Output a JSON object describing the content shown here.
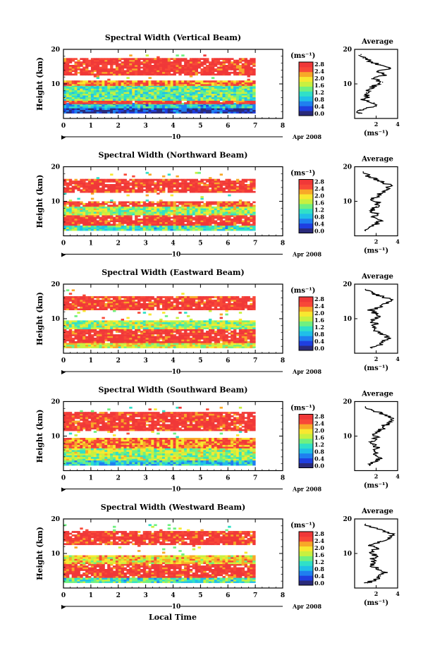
{
  "figure": {
    "xlabel": "Local Time",
    "date_label": "Apr 2008",
    "day_label": "10",
    "colorbar_unit": "(ms⁻¹)",
    "colorbar_ticks": [
      "0.0",
      "0.4",
      "0.8",
      "1.2",
      "1.6",
      "2.0",
      "2.4",
      "2.8"
    ],
    "colorbar_colors": [
      "#2a2a7a",
      "#1f3fe0",
      "#1f7ff0",
      "#20bfe8",
      "#30e0c8",
      "#70f080",
      "#c8f040",
      "#f8e830",
      "#f8a828",
      "#f84838",
      "#f03838"
    ],
    "average_title": "Average",
    "average_xlabel": "(ms⁻¹)",
    "ylabel": "Height (km)"
  },
  "chart_data": [
    {
      "type": "heatmap",
      "title": "Spectral Width (Vertical Beam)",
      "xlabel": "Local Time",
      "ylabel": "Height (km)",
      "xlim": [
        0,
        8
      ],
      "ylim": [
        0,
        20
      ],
      "x_ticks": [
        "0",
        "1",
        "2",
        "3",
        "4",
        "5",
        "6",
        "7",
        "8"
      ],
      "y_ticks": [
        "20",
        "10"
      ],
      "data_x_range": [
        0,
        7
      ],
      "data_height_range": [
        1.5,
        18.5
      ],
      "colorbar": {
        "label": "(ms⁻¹)",
        "range": [
          0.0,
          2.8
        ]
      },
      "layers": [
        {
          "from": 1.5,
          "to": 3.0,
          "level": 0.2
        },
        {
          "from": 3.0,
          "to": 4.2,
          "level": 0.9
        },
        {
          "from": 4.2,
          "to": 5.2,
          "level": 2.8
        },
        {
          "from": 5.2,
          "to": 9.5,
          "level": 1.3
        },
        {
          "from": 9.5,
          "to": 11.0,
          "level": 2.4
        },
        {
          "from": 11.0,
          "to": 12.5,
          "level": 0
        },
        {
          "from": 12.5,
          "to": 17.5,
          "level": 2.8
        },
        {
          "from": 17.5,
          "to": 18.5,
          "level": 0
        }
      ],
      "average_profile": {
        "title": "Average",
        "xlabel": "(ms⁻¹)",
        "xlim": [
          0,
          4
        ],
        "x_ticks": [
          "2",
          "4"
        ],
        "ylim": [
          0,
          20
        ],
        "y_ticks": [
          "20",
          "10"
        ],
        "height": [
          1.5,
          2.5,
          3.5,
          4.5,
          5.5,
          6.5,
          7.5,
          8.5,
          9.5,
          10.5,
          11.5,
          12.5,
          13.5,
          14.5,
          15.5,
          16.5,
          17.5,
          18.5
        ],
        "width": [
          0.4,
          0.5,
          2.0,
          1.8,
          0.9,
          1.2,
          1.1,
          1.4,
          1.8,
          2.6,
          1.6,
          2.8,
          2.2,
          3.2,
          2.4,
          1.5,
          0.8,
          0.6
        ]
      }
    },
    {
      "type": "heatmap",
      "title": "Spectral Width (Northward Beam)",
      "xlabel": "Local Time",
      "ylabel": "Height (km)",
      "xlim": [
        0,
        8
      ],
      "ylim": [
        0,
        20
      ],
      "x_ticks": [
        "0",
        "1",
        "2",
        "3",
        "4",
        "5",
        "6",
        "7",
        "8"
      ],
      "y_ticks": [
        "20",
        "10"
      ],
      "data_x_range": [
        0,
        7
      ],
      "data_height_range": [
        1.5,
        18.5
      ],
      "colorbar": {
        "label": "(ms⁻¹)",
        "range": [
          0.0,
          2.8
        ]
      },
      "layers": [
        {
          "from": 1.5,
          "to": 3.0,
          "level": 1.2
        },
        {
          "from": 3.0,
          "to": 6.0,
          "level": 2.8
        },
        {
          "from": 6.0,
          "to": 8.5,
          "level": 1.6
        },
        {
          "from": 8.5,
          "to": 10.0,
          "level": 2.6
        },
        {
          "from": 10.0,
          "to": 12.5,
          "level": 0
        },
        {
          "from": 12.5,
          "to": 16.5,
          "level": 2.8
        },
        {
          "from": 16.5,
          "to": 18.5,
          "level": 0
        }
      ],
      "average_profile": {
        "title": "Average",
        "xlabel": "(ms⁻¹)",
        "xlim": [
          0,
          4
        ],
        "x_ticks": [
          "2",
          "4"
        ],
        "ylim": [
          0,
          20
        ],
        "y_ticks": [
          "20",
          "10"
        ],
        "height": [
          1.5,
          2.5,
          3.5,
          4.5,
          5.5,
          6.5,
          7.5,
          8.5,
          9.5,
          10.5,
          11.5,
          12.5,
          13.5,
          14.5,
          15.5,
          16.5,
          17.5,
          18.5
        ],
        "width": [
          1.0,
          1.4,
          2.0,
          2.4,
          1.8,
          1.9,
          1.6,
          2.0,
          2.3,
          1.5,
          2.1,
          2.6,
          3.0,
          3.4,
          2.6,
          1.8,
          1.2,
          0.8
        ]
      }
    },
    {
      "type": "heatmap",
      "title": "Spectral Width (Eastward Beam)",
      "xlabel": "Local Time",
      "ylabel": "Height (km)",
      "xlim": [
        0,
        8
      ],
      "ylim": [
        0,
        20
      ],
      "x_ticks": [
        "0",
        "1",
        "2",
        "3",
        "4",
        "5",
        "6",
        "7",
        "8"
      ],
      "y_ticks": [
        "20",
        "10"
      ],
      "data_x_range": [
        0,
        7
      ],
      "data_height_range": [
        1.5,
        18.5
      ],
      "colorbar": {
        "label": "(ms⁻¹)",
        "range": [
          0.0,
          2.8
        ]
      },
      "layers": [
        {
          "from": 1.5,
          "to": 3.0,
          "level": 1.8
        },
        {
          "from": 3.0,
          "to": 7.0,
          "level": 2.8
        },
        {
          "from": 7.0,
          "to": 9.5,
          "level": 1.6
        },
        {
          "from": 9.5,
          "to": 12.5,
          "level": 0
        },
        {
          "from": 12.5,
          "to": 16.5,
          "level": 2.8
        },
        {
          "from": 16.5,
          "to": 18.5,
          "level": 0
        }
      ],
      "average_profile": {
        "title": "Average",
        "xlabel": "(ms⁻¹)",
        "xlim": [
          0,
          4
        ],
        "x_ticks": [
          "2",
          "4"
        ],
        "ylim": [
          0,
          20
        ],
        "y_ticks": [
          "20",
          "10"
        ],
        "height": [
          1.5,
          2.5,
          3.5,
          4.5,
          5.5,
          6.5,
          7.5,
          8.5,
          9.5,
          10.5,
          11.5,
          12.5,
          13.5,
          14.5,
          15.5,
          16.5,
          17.5,
          18.5
        ],
        "width": [
          1.6,
          2.6,
          2.8,
          3.2,
          2.6,
          1.8,
          1.7,
          1.9,
          1.6,
          2.3,
          2.0,
          1.4,
          2.6,
          3.0,
          3.4,
          2.4,
          1.6,
          1.0
        ]
      }
    },
    {
      "type": "heatmap",
      "title": "Spectral Width (Southward Beam)",
      "xlabel": "Local Time",
      "ylabel": "Height (km)",
      "xlim": [
        0,
        8
      ],
      "ylim": [
        0,
        20
      ],
      "x_ticks": [
        "0",
        "1",
        "2",
        "3",
        "4",
        "5",
        "6",
        "7",
        "8"
      ],
      "y_ticks": [
        "20",
        "10"
      ],
      "data_x_range": [
        0,
        7
      ],
      "data_height_range": [
        1.5,
        18.5
      ],
      "colorbar": {
        "label": "(ms⁻¹)",
        "range": [
          0.0,
          2.8
        ]
      },
      "layers": [
        {
          "from": 1.5,
          "to": 3.0,
          "level": 1.0
        },
        {
          "from": 3.0,
          "to": 6.5,
          "level": 1.6
        },
        {
          "from": 6.5,
          "to": 9.5,
          "level": 2.4
        },
        {
          "from": 9.5,
          "to": 11.5,
          "level": 0
        },
        {
          "from": 11.5,
          "to": 17.0,
          "level": 2.8
        },
        {
          "from": 17.0,
          "to": 18.5,
          "level": 0
        }
      ],
      "average_profile": {
        "title": "Average",
        "xlabel": "(ms⁻¹)",
        "xlim": [
          0,
          4
        ],
        "x_ticks": [
          "2",
          "4"
        ],
        "ylim": [
          0,
          20
        ],
        "y_ticks": [
          "20",
          "10"
        ],
        "height": [
          1.5,
          2.5,
          3.5,
          4.5,
          5.5,
          6.5,
          7.5,
          8.5,
          9.5,
          10.5,
          11.5,
          12.5,
          13.5,
          14.5,
          15.5,
          16.5,
          17.5,
          18.5
        ],
        "width": [
          1.4,
          1.8,
          2.2,
          2.0,
          1.9,
          2.1,
          1.7,
          1.6,
          2.0,
          1.8,
          2.4,
          2.6,
          3.0,
          3.6,
          3.2,
          2.6,
          1.6,
          1.0
        ]
      }
    },
    {
      "type": "heatmap",
      "title": "Spectral Width (Westward Beam)",
      "xlabel": "Local Time",
      "ylabel": "Height (km)",
      "xlim": [
        0,
        8
      ],
      "ylim": [
        0,
        20
      ],
      "x_ticks": [
        "0",
        "1",
        "2",
        "3",
        "4",
        "5",
        "6",
        "7",
        "8"
      ],
      "y_ticks": [
        "20",
        "10"
      ],
      "data_x_range": [
        0,
        7
      ],
      "data_height_range": [
        1.5,
        18.5
      ],
      "colorbar": {
        "label": "(ms⁻¹)",
        "range": [
          0.0,
          2.8
        ]
      },
      "layers": [
        {
          "from": 1.5,
          "to": 3.0,
          "level": 1.2
        },
        {
          "from": 3.0,
          "to": 7.0,
          "level": 2.8
        },
        {
          "from": 7.0,
          "to": 9.5,
          "level": 2.0
        },
        {
          "from": 9.5,
          "to": 12.5,
          "level": 0
        },
        {
          "from": 12.5,
          "to": 16.5,
          "level": 2.8
        },
        {
          "from": 16.5,
          "to": 18.5,
          "level": 0
        }
      ],
      "average_profile": {
        "title": "Average",
        "xlabel": "(ms⁻¹)",
        "xlim": [
          0,
          4
        ],
        "x_ticks": [
          "2",
          "4"
        ],
        "ylim": [
          0,
          20
        ],
        "y_ticks": [
          "20",
          "10"
        ],
        "height": [
          1.5,
          2.5,
          3.5,
          4.5,
          5.5,
          6.5,
          7.5,
          8.5,
          9.5,
          10.5,
          11.5,
          12.5,
          13.5,
          14.5,
          15.5,
          16.5,
          17.5,
          18.5
        ],
        "width": [
          1.2,
          2.0,
          2.4,
          2.8,
          2.2,
          1.6,
          1.8,
          1.7,
          1.9,
          1.6,
          2.2,
          1.4,
          2.4,
          3.2,
          3.6,
          2.8,
          1.8,
          1.0
        ]
      }
    }
  ]
}
